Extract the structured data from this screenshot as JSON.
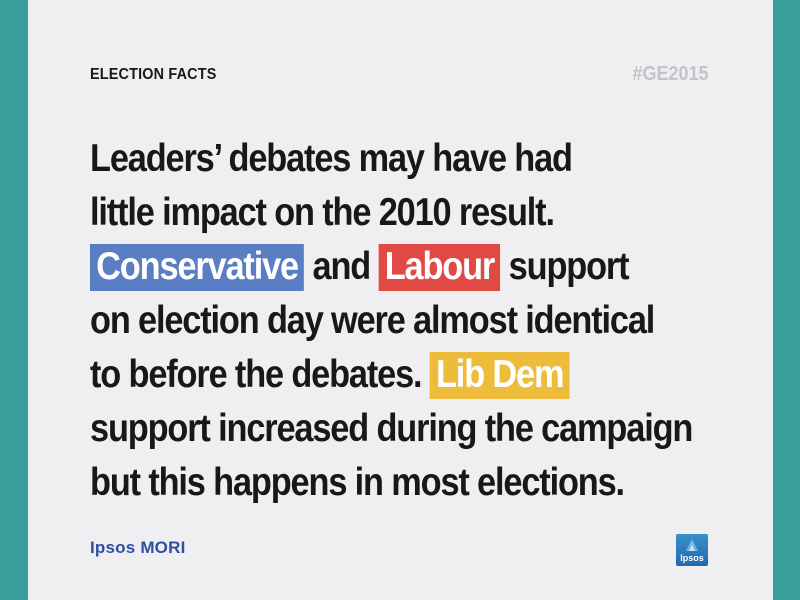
{
  "header": {
    "kicker": "ELECTION FACTS",
    "hashtag": "#GE2015"
  },
  "headline": {
    "line1": "Leaders’ debates may have had",
    "line2": "little impact on the 2010 result.",
    "conservative": "Conservative",
    "and": " and ",
    "labour": "Labour",
    "support": " support",
    "line4": "on election day were almost identical",
    "line5": "to before the debates. ",
    "libdem": "Lib Dem",
    "line6": "support increased during the campaign",
    "line7": "but this happens in most elections."
  },
  "footer": {
    "brand": "Ipsos MORI",
    "logo_text": "Ipsos"
  },
  "colors": {
    "conservative": "#5a7ec4",
    "labour": "#e04a45",
    "libdem": "#ecbc3a",
    "frame": "#3a9e9a"
  }
}
